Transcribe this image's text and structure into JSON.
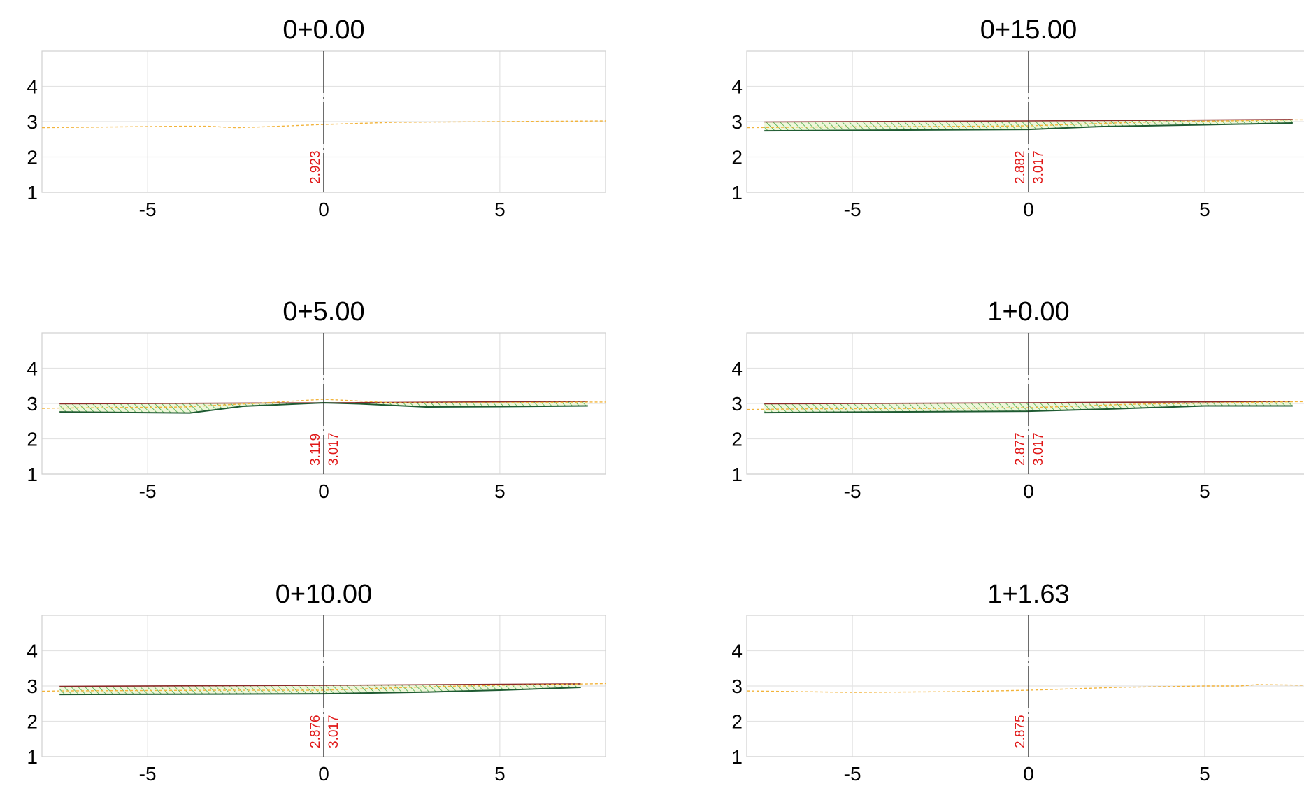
{
  "chart_data": [
    {
      "type": "line",
      "title": "0+0.00",
      "xlim": [
        -8,
        8
      ],
      "ylim": [
        1,
        5
      ],
      "x_ticks": [
        -5,
        0,
        5
      ],
      "x_tick_labels": [
        "-5",
        "0",
        "5"
      ],
      "y_ticks": [
        1,
        2,
        3,
        4
      ],
      "y_tick_labels": [
        "1",
        "2",
        "3",
        "4"
      ],
      "grid": true,
      "centerline_x": 0,
      "ground_line": [
        [
          -8,
          2.83
        ],
        [
          -6,
          2.85
        ],
        [
          -4,
          2.87
        ],
        [
          -3.3,
          2.87
        ],
        [
          -2.5,
          2.83
        ],
        [
          -1.5,
          2.86
        ],
        [
          0,
          2.92
        ],
        [
          2,
          2.98
        ],
        [
          5,
          3.0
        ],
        [
          8,
          3.02
        ]
      ],
      "labels": [
        "2.923"
      ],
      "fill_top": [],
      "fill_bottom": []
    },
    {
      "type": "line",
      "title": "0+15.00",
      "xlim": [
        -8,
        8
      ],
      "ylim": [
        1,
        5
      ],
      "x_ticks": [
        -5,
        0,
        5
      ],
      "x_tick_labels": [
        "-5",
        "0",
        "5"
      ],
      "y_ticks": [
        1,
        2,
        3,
        4
      ],
      "y_tick_labels": [
        "1",
        "2",
        "3",
        "4"
      ],
      "grid": true,
      "centerline_x": 0,
      "ground_line": [
        [
          -8,
          2.83
        ],
        [
          -6,
          2.85
        ],
        [
          -3,
          2.86
        ],
        [
          0,
          2.88
        ],
        [
          3,
          2.98
        ],
        [
          5,
          3.01
        ],
        [
          7.5,
          3.05
        ],
        [
          8,
          3.05
        ]
      ],
      "labels": [
        "2.882",
        "3.017"
      ],
      "fill_top": [
        [
          -7.5,
          2.99
        ],
        [
          0,
          3.02
        ],
        [
          7.5,
          3.06
        ]
      ],
      "fill_bottom": [
        [
          -7.5,
          2.74
        ],
        [
          0,
          2.78
        ],
        [
          2,
          2.86
        ],
        [
          5,
          2.91
        ],
        [
          7.5,
          2.96
        ]
      ]
    },
    {
      "type": "line",
      "title": "0+5.00",
      "xlim": [
        -8,
        8
      ],
      "ylim": [
        1,
        5
      ],
      "x_ticks": [
        -5,
        0,
        5
      ],
      "x_tick_labels": [
        "-5",
        "0",
        "5"
      ],
      "y_ticks": [
        1,
        2,
        3,
        4
      ],
      "y_tick_labels": [
        "1",
        "2",
        "3",
        "4"
      ],
      "grid": true,
      "centerline_x": 0,
      "ground_line": [
        [
          -8,
          2.86
        ],
        [
          -7.5,
          2.87
        ],
        [
          -4,
          2.9
        ],
        [
          -2,
          3.0
        ],
        [
          0,
          3.12
        ],
        [
          2,
          3.02
        ],
        [
          5,
          3.02
        ],
        [
          7.5,
          3.04
        ],
        [
          8,
          3.04
        ]
      ],
      "labels": [
        "3.119",
        "3.017"
      ],
      "fill_top": [
        [
          -7.5,
          2.99
        ],
        [
          0,
          3.02
        ],
        [
          7.5,
          3.06
        ]
      ],
      "fill_bottom": [
        [
          -7.5,
          2.76
        ],
        [
          -3.8,
          2.73
        ],
        [
          -2.3,
          2.92
        ],
        [
          0,
          3.02
        ],
        [
          1,
          2.99
        ],
        [
          2.9,
          2.9
        ],
        [
          5,
          2.91
        ],
        [
          7.5,
          2.93
        ]
      ]
    },
    {
      "type": "line",
      "title": "1+0.00",
      "xlim": [
        -8,
        8
      ],
      "ylim": [
        1,
        5
      ],
      "x_ticks": [
        -5,
        0,
        5
      ],
      "x_tick_labels": [
        "-5",
        "0",
        "5"
      ],
      "y_ticks": [
        1,
        2,
        3,
        4
      ],
      "y_tick_labels": [
        "1",
        "2",
        "3",
        "4"
      ],
      "grid": true,
      "centerline_x": 0,
      "ground_line": [
        [
          -8,
          2.83
        ],
        [
          -6,
          2.85
        ],
        [
          -3,
          2.86
        ],
        [
          0,
          2.88
        ],
        [
          3,
          2.98
        ],
        [
          5,
          3.01
        ],
        [
          7.5,
          3.05
        ],
        [
          8,
          3.05
        ]
      ],
      "labels": [
        "2.877",
        "3.017"
      ],
      "fill_top": [
        [
          -7.5,
          2.99
        ],
        [
          0,
          3.02
        ],
        [
          7.5,
          3.06
        ]
      ],
      "fill_bottom": [
        [
          -7.5,
          2.74
        ],
        [
          0,
          2.78
        ],
        [
          2.5,
          2.85
        ],
        [
          5,
          2.93
        ],
        [
          7.5,
          2.93
        ]
      ]
    },
    {
      "type": "line",
      "title": "0+10.00",
      "xlim": [
        -8,
        8
      ],
      "ylim": [
        1,
        5
      ],
      "x_ticks": [
        -5,
        0,
        5
      ],
      "x_tick_labels": [
        "-5",
        "0",
        "5"
      ],
      "y_ticks": [
        1,
        2,
        3,
        4
      ],
      "y_tick_labels": [
        "1",
        "2",
        "3",
        "4"
      ],
      "grid": true,
      "centerline_x": 0,
      "ground_line": [
        [
          -8,
          2.85
        ],
        [
          -7.5,
          2.86
        ],
        [
          -3,
          2.88
        ],
        [
          0,
          2.88
        ],
        [
          3,
          2.98
        ],
        [
          5,
          3.02
        ],
        [
          7.5,
          3.06
        ],
        [
          8,
          3.07
        ]
      ],
      "labels": [
        "2.876",
        "3.017"
      ],
      "fill_top": [
        [
          -7.5,
          2.99
        ],
        [
          0,
          3.02
        ],
        [
          7.3,
          3.06
        ]
      ],
      "fill_bottom": [
        [
          -7.5,
          2.76
        ],
        [
          -3,
          2.77
        ],
        [
          0,
          2.78
        ],
        [
          3,
          2.83
        ],
        [
          5,
          2.88
        ],
        [
          7.3,
          2.96
        ]
      ]
    },
    {
      "type": "line",
      "title": "1+1.63",
      "xlim": [
        -8,
        8
      ],
      "ylim": [
        1,
        5
      ],
      "x_ticks": [
        -5,
        0,
        5
      ],
      "x_tick_labels": [
        "-5",
        "0",
        "5"
      ],
      "y_ticks": [
        1,
        2,
        3,
        4
      ],
      "y_tick_labels": [
        "1",
        "2",
        "3",
        "4"
      ],
      "grid": true,
      "centerline_x": 0,
      "ground_line": [
        [
          -8,
          2.86
        ],
        [
          -5,
          2.82
        ],
        [
          -2,
          2.84
        ],
        [
          0,
          2.88
        ],
        [
          2.5,
          2.96
        ],
        [
          5,
          3.0
        ],
        [
          6,
          3.0
        ],
        [
          6.5,
          3.04
        ],
        [
          8,
          3.02
        ]
      ],
      "labels": [
        "2.875"
      ],
      "fill_top": [],
      "fill_bottom": []
    }
  ]
}
